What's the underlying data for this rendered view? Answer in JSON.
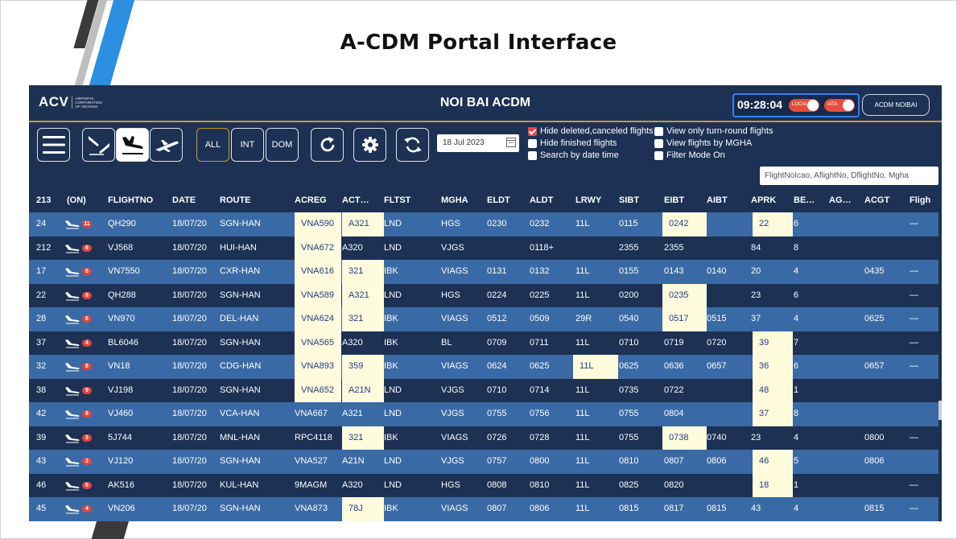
{
  "slide": {
    "title": "A-CDM Portal Interface"
  },
  "app": {
    "logo_text": "ACV",
    "logo_subtext": "AIRPORTS CORPORATION OF VIETNAM",
    "title": "NOI BAI ACDM",
    "clock": "09:28:04",
    "toggle_local_label": "LOCAL",
    "toggle_iata_label": "IATA",
    "airport_button": "ACDM NOIBAI"
  },
  "toolbar": {
    "filter_all": "ALL",
    "filter_int": "INT",
    "filter_dom": "DOM",
    "date_value": "18 Jul 2023",
    "checks_left": [
      {
        "label": "Hide deleted,canceled flights",
        "checked": true
      },
      {
        "label": "Hide finished flights",
        "checked": false
      },
      {
        "label": "Search by date time",
        "checked": false
      }
    ],
    "checks_right": [
      {
        "label": "View only turn-round flights",
        "checked": false
      },
      {
        "label": "View flights by MGHA",
        "checked": false
      },
      {
        "label": "Filter Mode On",
        "checked": false
      }
    ],
    "search_placeholder": "FlightNoIcao, AflightNo, DflightNo, Mgha"
  },
  "table": {
    "columns": [
      "213",
      "(ON)",
      "FLIGHTNO",
      "DATE",
      "ROUTE",
      "ACREG",
      "ACT…",
      "FLTST",
      "MGHA",
      "ELDT",
      "ALDT",
      "LRWY",
      "SIBT",
      "EIBT",
      "AIBT",
      "APRK",
      "BE…",
      "AG…",
      "ACGT",
      "Fligh"
    ],
    "rows": [
      {
        "id": "24",
        "badge": "11",
        "flightno": "QH290",
        "date": "18/07/20",
        "route": "SGN-HAN",
        "acreg": "VNA590",
        "act": "A321",
        "fltst": "LND",
        "mgha": "HGS",
        "eldt": "0230",
        "aldt": "0232",
        "lrwy": "11L",
        "sibt": "0115",
        "eibt": "0242",
        "aibt": "",
        "aprk": "22",
        "be": "6",
        "ag": "",
        "acgt": "",
        "fligh": "—",
        "hl": [
          "acreg",
          "act",
          "eibt",
          "aprk"
        ]
      },
      {
        "id": "212",
        "badge": "6",
        "flightno": "VJ568",
        "date": "18/07/20",
        "route": "HUI-HAN",
        "acreg": "VNA672",
        "act": "A320",
        "fltst": "LND",
        "mgha": "VJGS",
        "eldt": "",
        "aldt": "0118+",
        "lrwy": "",
        "sibt": "2355",
        "eibt": "2355",
        "aibt": "",
        "aprk": "84",
        "be": "8",
        "ag": "",
        "acgt": "",
        "fligh": "",
        "hl": [
          "acreg"
        ]
      },
      {
        "id": "17",
        "badge": "5",
        "flightno": "VN7550",
        "date": "18/07/20",
        "route": "CXR-HAN",
        "acreg": "VNA616",
        "act": "321",
        "fltst": "IBK",
        "mgha": "VIAGS",
        "eldt": "0131",
        "aldt": "0132",
        "lrwy": "11L",
        "sibt": "0155",
        "eibt": "0143",
        "aibt": "0140",
        "aprk": "20",
        "be": "4",
        "ag": "",
        "acgt": "0435",
        "fligh": "—",
        "hl": [
          "acreg",
          "act"
        ]
      },
      {
        "id": "22",
        "badge": "8",
        "flightno": "QH288",
        "date": "18/07/20",
        "route": "SGN-HAN",
        "acreg": "VNA589",
        "act": "A321",
        "fltst": "LND",
        "mgha": "HGS",
        "eldt": "0224",
        "aldt": "0225",
        "lrwy": "11L",
        "sibt": "0200",
        "eibt": "0235",
        "aibt": "",
        "aprk": "23",
        "be": "6",
        "ag": "",
        "acgt": "",
        "fligh": "—",
        "hl": [
          "acreg",
          "act",
          "eibt"
        ]
      },
      {
        "id": "28",
        "badge": "6",
        "flightno": "VN970",
        "date": "18/07/20",
        "route": "DEL-HAN",
        "acreg": "VNA624",
        "act": "321",
        "fltst": "IBK",
        "mgha": "VIAGS",
        "eldt": "0512",
        "aldt": "0509",
        "lrwy": "29R",
        "sibt": "0540",
        "eibt": "0517",
        "aibt": "0515",
        "aprk": "37",
        "be": "4",
        "ag": "",
        "acgt": "0625",
        "fligh": "—",
        "hl": [
          "acreg",
          "act",
          "eibt"
        ]
      },
      {
        "id": "37",
        "badge": "4",
        "flightno": "BL6046",
        "date": "18/07/20",
        "route": "SGN-HAN",
        "acreg": "VNA565",
        "act": "A320",
        "fltst": "IBK",
        "mgha": "BL",
        "eldt": "0709",
        "aldt": "0711",
        "lrwy": "11L",
        "sibt": "0710",
        "eibt": "0719",
        "aibt": "0720",
        "aprk": "39",
        "be": "7",
        "ag": "",
        "acgt": "",
        "fligh": "—",
        "hl": [
          "acreg",
          "aprk"
        ]
      },
      {
        "id": "32",
        "badge": "8",
        "flightno": "VN18",
        "date": "18/07/20",
        "route": "CDG-HAN",
        "acreg": "VNA893",
        "act": "359",
        "fltst": "IBK",
        "mgha": "VIAGS",
        "eldt": "0624",
        "aldt": "0625",
        "lrwy": "11L",
        "sibt": "0625",
        "eibt": "0636",
        "aibt": "0657",
        "aprk": "36",
        "be": "6",
        "ag": "",
        "acgt": "0657",
        "fligh": "—",
        "hl": [
          "acreg",
          "act",
          "lrwy",
          "aprk"
        ]
      },
      {
        "id": "38",
        "badge": "9",
        "flightno": "VJ198",
        "date": "18/07/20",
        "route": "SGN-HAN",
        "acreg": "VNA652",
        "act": "A21N",
        "fltst": "LND",
        "mgha": "VJGS",
        "eldt": "0710",
        "aldt": "0714",
        "lrwy": "11L",
        "sibt": "0735",
        "eibt": "0722",
        "aibt": "",
        "aprk": "48",
        "be": "1",
        "ag": "",
        "acgt": "",
        "fligh": "",
        "hl": [
          "acreg",
          "act",
          "aprk"
        ]
      },
      {
        "id": "42",
        "badge": "8",
        "flightno": "VJ460",
        "date": "18/07/20",
        "route": "VCA-HAN",
        "acreg": "VNA667",
        "act": "A321",
        "fltst": "LND",
        "mgha": "VJGS",
        "eldt": "0755",
        "aldt": "0756",
        "lrwy": "11L",
        "sibt": "0755",
        "eibt": "0804",
        "aibt": "",
        "aprk": "37",
        "be": "8",
        "ag": "",
        "acgt": "",
        "fligh": "",
        "hl": [
          "aprk"
        ]
      },
      {
        "id": "39",
        "badge": "3",
        "flightno": "5J744",
        "date": "18/07/20",
        "route": "MNL-HAN",
        "acreg": "RPC4118",
        "act": "321",
        "fltst": "IBK",
        "mgha": "VIAGS",
        "eldt": "0726",
        "aldt": "0728",
        "lrwy": "11L",
        "sibt": "0755",
        "eibt": "0738",
        "aibt": "0740",
        "aprk": "23",
        "be": "4",
        "ag": "",
        "acgt": "0800",
        "fligh": "—",
        "hl": [
          "act",
          "eibt"
        ]
      },
      {
        "id": "43",
        "badge": "3",
        "flightno": "VJ120",
        "date": "18/07/20",
        "route": "SGN-HAN",
        "acreg": "VNA527",
        "act": "A21N",
        "fltst": "LND",
        "mgha": "VJGS",
        "eldt": "0757",
        "aldt": "0800",
        "lrwy": "11L",
        "sibt": "0810",
        "eibt": "0807",
        "aibt": "0806",
        "aprk": "46",
        "be": "5",
        "ag": "",
        "acgt": "0806",
        "fligh": "",
        "hl": [
          "aprk"
        ]
      },
      {
        "id": "46",
        "badge": "6",
        "flightno": "AK516",
        "date": "18/07/20",
        "route": "KUL-HAN",
        "acreg": "9MAGM",
        "act": "A320",
        "fltst": "LND",
        "mgha": "HGS",
        "eldt": "0808",
        "aldt": "0810",
        "lrwy": "11L",
        "sibt": "0825",
        "eibt": "0820",
        "aibt": "",
        "aprk": "18",
        "be": "1",
        "ag": "",
        "acgt": "",
        "fligh": "—",
        "hl": [
          "aprk"
        ]
      },
      {
        "id": "45",
        "badge": "4",
        "flightno": "VN206",
        "date": "18/07/20",
        "route": "SGN-HAN",
        "acreg": "VNA873",
        "act": "78J",
        "fltst": "IBK",
        "mgha": "VIAGS",
        "eldt": "0807",
        "aldt": "0806",
        "lrwy": "11L",
        "sibt": "0815",
        "eibt": "0817",
        "aibt": "0815",
        "aprk": "43",
        "be": "4",
        "ag": "",
        "acgt": "0815",
        "fligh": "—",
        "hl": [
          "act"
        ]
      }
    ]
  },
  "colors": {
    "app_bg": "#1c3153",
    "row_alt": "#3a6aa5",
    "highlight_cell": "#fffbdc",
    "accent_gold": "#c99a2e",
    "badge_red": "#e0443e"
  }
}
